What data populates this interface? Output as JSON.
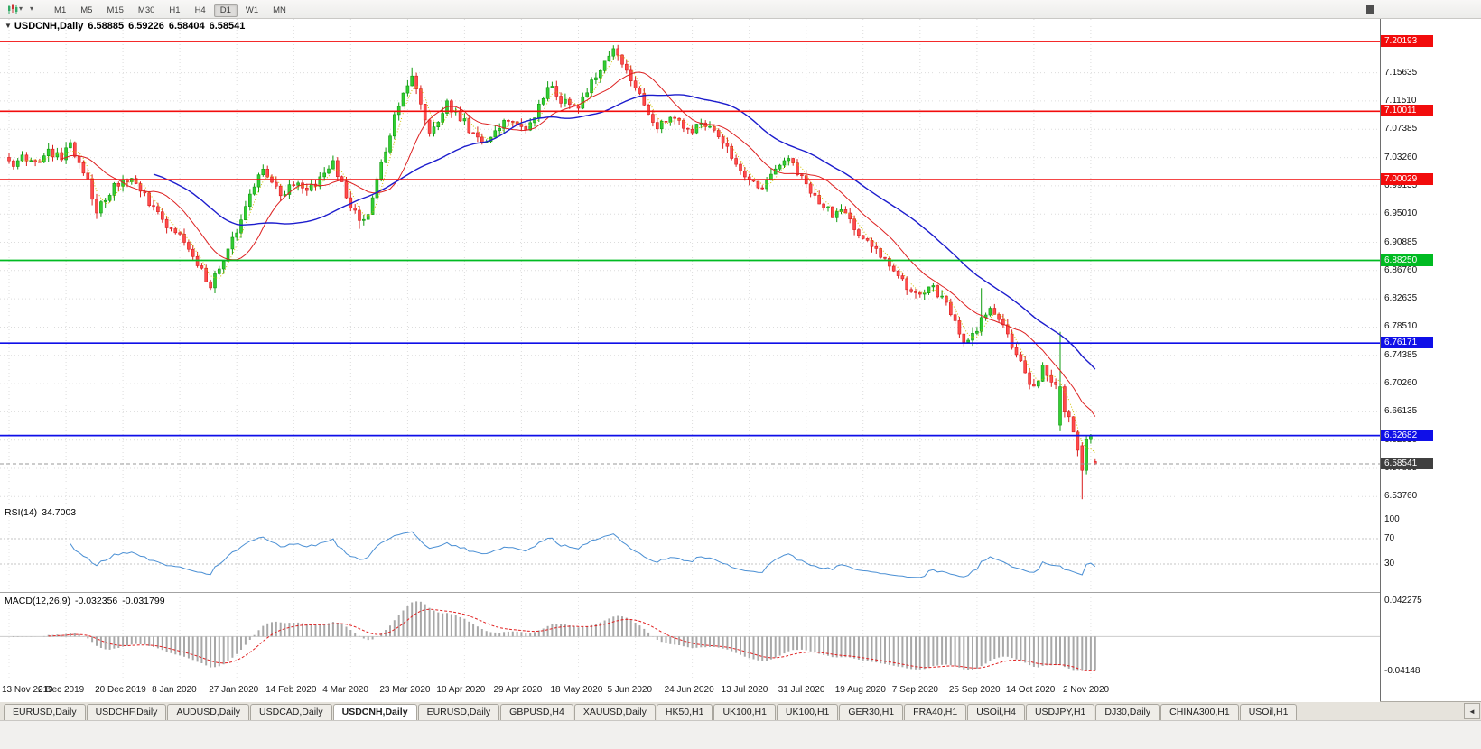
{
  "icons": {
    "caret": "▾",
    "title_arrow": "▼",
    "scroll_left": "◄"
  },
  "toolbar": {
    "timeframes": [
      "M1",
      "M5",
      "M15",
      "M30",
      "H1",
      "H4",
      "D1",
      "W1",
      "MN"
    ],
    "active_timeframe": "D1"
  },
  "chart": {
    "title": "USDCNH,Daily",
    "ohlc": {
      "open": "6.58885",
      "high": "6.59226",
      "low": "6.58404",
      "close": "6.58541"
    },
    "price_axis": {
      "ticks": [
        "7.15635",
        "7.11510",
        "7.07385",
        "7.03260",
        "6.99135",
        "6.95010",
        "6.90885",
        "6.86760",
        "6.82635",
        "6.78510",
        "6.74385",
        "6.70260",
        "6.66135",
        "6.62010",
        "6.57885",
        "6.53760"
      ],
      "current_price": {
        "label": "6.58541",
        "value": 6.58541,
        "background": "#404040"
      }
    },
    "date_axis": [
      "13 Nov 2019",
      "2 Dec 2019",
      "20 Dec 2019",
      "8 Jan 2020",
      "27 Jan 2020",
      "14 Feb 2020",
      "4 Mar 2020",
      "23 Mar 2020",
      "10 Apr 2020",
      "29 Apr 2020",
      "18 May 2020",
      "5 Jun 2020",
      "24 Jun 2020",
      "13 Jul 2020",
      "31 Jul 2020",
      "19 Aug 2020",
      "7 Sep 2020",
      "25 Sep 2020",
      "14 Oct 2020",
      "2 Nov 2020"
    ]
  },
  "indicators": {
    "rsi": {
      "name": "RSI(14)",
      "value": "34.7003",
      "color": "#4a8fd4",
      "axis_ticks": [
        {
          "label": "100",
          "value": 100
        },
        {
          "label": "70",
          "value": 70
        },
        {
          "label": "30",
          "value": 30
        }
      ],
      "levels": [
        70,
        30
      ]
    },
    "macd": {
      "name": "MACD(12,26,9)",
      "value": "-0.032356",
      "signal_value": "-0.031799",
      "histogram_color": "#a8a8a8",
      "signal_color": "#e02020",
      "axis_ticks": [
        {
          "label": "0.042275",
          "value": 0.042275
        },
        {
          "label": "-0.04148",
          "value": -0.04148
        }
      ]
    }
  },
  "chart_data": {
    "type": "candlestick",
    "symbol": "USDCNH",
    "timeframe": "Daily",
    "candle_count": 249,
    "candles_per_x_label": 13,
    "price_range": {
      "top": 7.2349,
      "bottom": 6.5275
    },
    "up_color": "#32cd32",
    "up_stroke": "#0f9b0f",
    "down_color": "#ff4c4c",
    "down_stroke": "#d91e1e",
    "price_path": [
      [
        0,
        7.022
      ],
      [
        3,
        7.032
      ],
      [
        6,
        7.027
      ],
      [
        9,
        7.042
      ],
      [
        12,
        7.035
      ],
      [
        14,
        7.048
      ],
      [
        16,
        7.03
      ],
      [
        18,
        7.0
      ],
      [
        20,
        6.956
      ],
      [
        22,
        6.975
      ],
      [
        24,
        6.99
      ],
      [
        26,
        7.0
      ],
      [
        28,
        7.005
      ],
      [
        30,
        6.985
      ],
      [
        33,
        6.96
      ],
      [
        36,
        6.935
      ],
      [
        39,
        6.915
      ],
      [
        41,
        6.9
      ],
      [
        43,
        6.875
      ],
      [
        45,
        6.855
      ],
      [
        46,
        6.846
      ],
      [
        48,
        6.87
      ],
      [
        50,
        6.9
      ],
      [
        52,
        6.925
      ],
      [
        54,
        6.96
      ],
      [
        56,
        6.99
      ],
      [
        58,
        7.015
      ],
      [
        60,
        7.0
      ],
      [
        62,
        6.976
      ],
      [
        64,
        6.99
      ],
      [
        66,
        7.0
      ],
      [
        68,
        6.986
      ],
      [
        70,
        6.992
      ],
      [
        72,
        7.01
      ],
      [
        74,
        7.022
      ],
      [
        76,
        6.995
      ],
      [
        78,
        6.965
      ],
      [
        80,
        6.936
      ],
      [
        82,
        6.956
      ],
      [
        84,
        7.0
      ],
      [
        86,
        7.04
      ],
      [
        88,
        7.09
      ],
      [
        90,
        7.13
      ],
      [
        92,
        7.155
      ],
      [
        94,
        7.11
      ],
      [
        96,
        7.07
      ],
      [
        98,
        7.09
      ],
      [
        100,
        7.11
      ],
      [
        102,
        7.095
      ],
      [
        104,
        7.085
      ],
      [
        106,
        7.065
      ],
      [
        108,
        7.05
      ],
      [
        110,
        7.06
      ],
      [
        112,
        7.075
      ],
      [
        114,
        7.09
      ],
      [
        116,
        7.085
      ],
      [
        118,
        7.075
      ],
      [
        120,
        7.095
      ],
      [
        122,
        7.125
      ],
      [
        124,
        7.135
      ],
      [
        126,
        7.11
      ],
      [
        128,
        7.115
      ],
      [
        130,
        7.105
      ],
      [
        132,
        7.13
      ],
      [
        134,
        7.15
      ],
      [
        136,
        7.17
      ],
      [
        138,
        7.19
      ],
      [
        140,
        7.175
      ],
      [
        142,
        7.145
      ],
      [
        144,
        7.125
      ],
      [
        146,
        7.09
      ],
      [
        148,
        7.075
      ],
      [
        150,
        7.085
      ],
      [
        152,
        7.095
      ],
      [
        154,
        7.08
      ],
      [
        156,
        7.07
      ],
      [
        158,
        7.08
      ],
      [
        160,
        7.075
      ],
      [
        162,
        7.06
      ],
      [
        164,
        7.045
      ],
      [
        166,
        7.025
      ],
      [
        168,
        7.005
      ],
      [
        170,
        6.995
      ],
      [
        172,
        6.99
      ],
      [
        174,
        7.005
      ],
      [
        176,
        7.02
      ],
      [
        178,
        7.03
      ],
      [
        180,
        7.01
      ],
      [
        182,
        6.99
      ],
      [
        184,
        6.975
      ],
      [
        186,
        6.965
      ],
      [
        188,
        6.95
      ],
      [
        190,
        6.955
      ],
      [
        192,
        6.94
      ],
      [
        194,
        6.925
      ],
      [
        196,
        6.915
      ],
      [
        198,
        6.9
      ],
      [
        200,
        6.885
      ],
      [
        202,
        6.87
      ],
      [
        204,
        6.85
      ],
      [
        206,
        6.835
      ],
      [
        208,
        6.83
      ],
      [
        210,
        6.845
      ],
      [
        212,
        6.835
      ],
      [
        214,
        6.815
      ],
      [
        216,
        6.79
      ],
      [
        218,
        6.765
      ],
      [
        220,
        6.775
      ],
      [
        222,
        6.795
      ],
      [
        224,
        6.815
      ],
      [
        226,
        6.8
      ],
      [
        228,
        6.77
      ],
      [
        230,
        6.745
      ],
      [
        232,
        6.715
      ],
      [
        234,
        6.7
      ],
      [
        236,
        6.725
      ],
      [
        238,
        6.705
      ],
      [
        240,
        6.695
      ],
      [
        241,
        6.665
      ],
      [
        242,
        6.648
      ],
      [
        243,
        6.628
      ],
      [
        244,
        6.606
      ],
      [
        245,
        6.575
      ],
      [
        246,
        6.615
      ],
      [
        247,
        6.625
      ],
      [
        248,
        6.585
      ]
    ],
    "overrides": [
      {
        "index": 20,
        "low": 6.943
      },
      {
        "index": 46,
        "low": 6.8395
      },
      {
        "index": 80,
        "low": 6.9285
      },
      {
        "index": 92,
        "high": 7.164
      },
      {
        "index": 138,
        "high": 7.1965
      },
      {
        "index": 222,
        "high": 6.842
      },
      {
        "index": 240,
        "open": 6.642,
        "close": 6.698,
        "high": 6.778,
        "low": 6.633
      },
      {
        "index": 245,
        "open": 6.612,
        "close": 6.576,
        "high": 6.617,
        "low": 6.5338
      },
      {
        "index": 248,
        "open": 6.58885,
        "high": 6.59226,
        "low": 6.58404,
        "close": 6.58541
      }
    ],
    "levels": [
      {
        "label": "7.20193",
        "value": 7.20193,
        "color": "#f20c0c"
      },
      {
        "label": "7.10011",
        "value": 7.10011,
        "color": "#f20c0c"
      },
      {
        "label": "7.00029",
        "value": 7.00029,
        "color": "#f20c0c"
      },
      {
        "label": "6.88250",
        "value": 6.8825,
        "color": "#00bb22"
      },
      {
        "label": "6.76171",
        "value": 6.76171,
        "color": "#0f0fe8"
      },
      {
        "label": "6.62682",
        "value": 6.62682,
        "color": "#0f0fe8"
      }
    ],
    "moving_averages": [
      {
        "name": "ma-fast",
        "period": 4,
        "color": "#cfc000",
        "style": "dotted"
      },
      {
        "name": "ma-medium",
        "period": 13,
        "color": "#dd2020",
        "style": "solid"
      },
      {
        "name": "ma-slow",
        "period": 34,
        "color": "#1c1ccd",
        "style": "solid"
      }
    ]
  },
  "tabs": {
    "items": [
      "EURUSD,Daily",
      "USDCHF,Daily",
      "AUDUSD,Daily",
      "USDCAD,Daily",
      "USDCNH,Daily",
      "EURUSD,Daily",
      "GBPUSD,H4",
      "XAUUSD,Daily",
      "HK50,H1",
      "UK100,H1",
      "UK100,H1",
      "GER30,H1",
      "FRA40,H1",
      "USOil,H4",
      "USDJPY,H1",
      "DJ30,Daily",
      "CHINA300,H1",
      "USOil,H1"
    ],
    "active_index": 4
  }
}
